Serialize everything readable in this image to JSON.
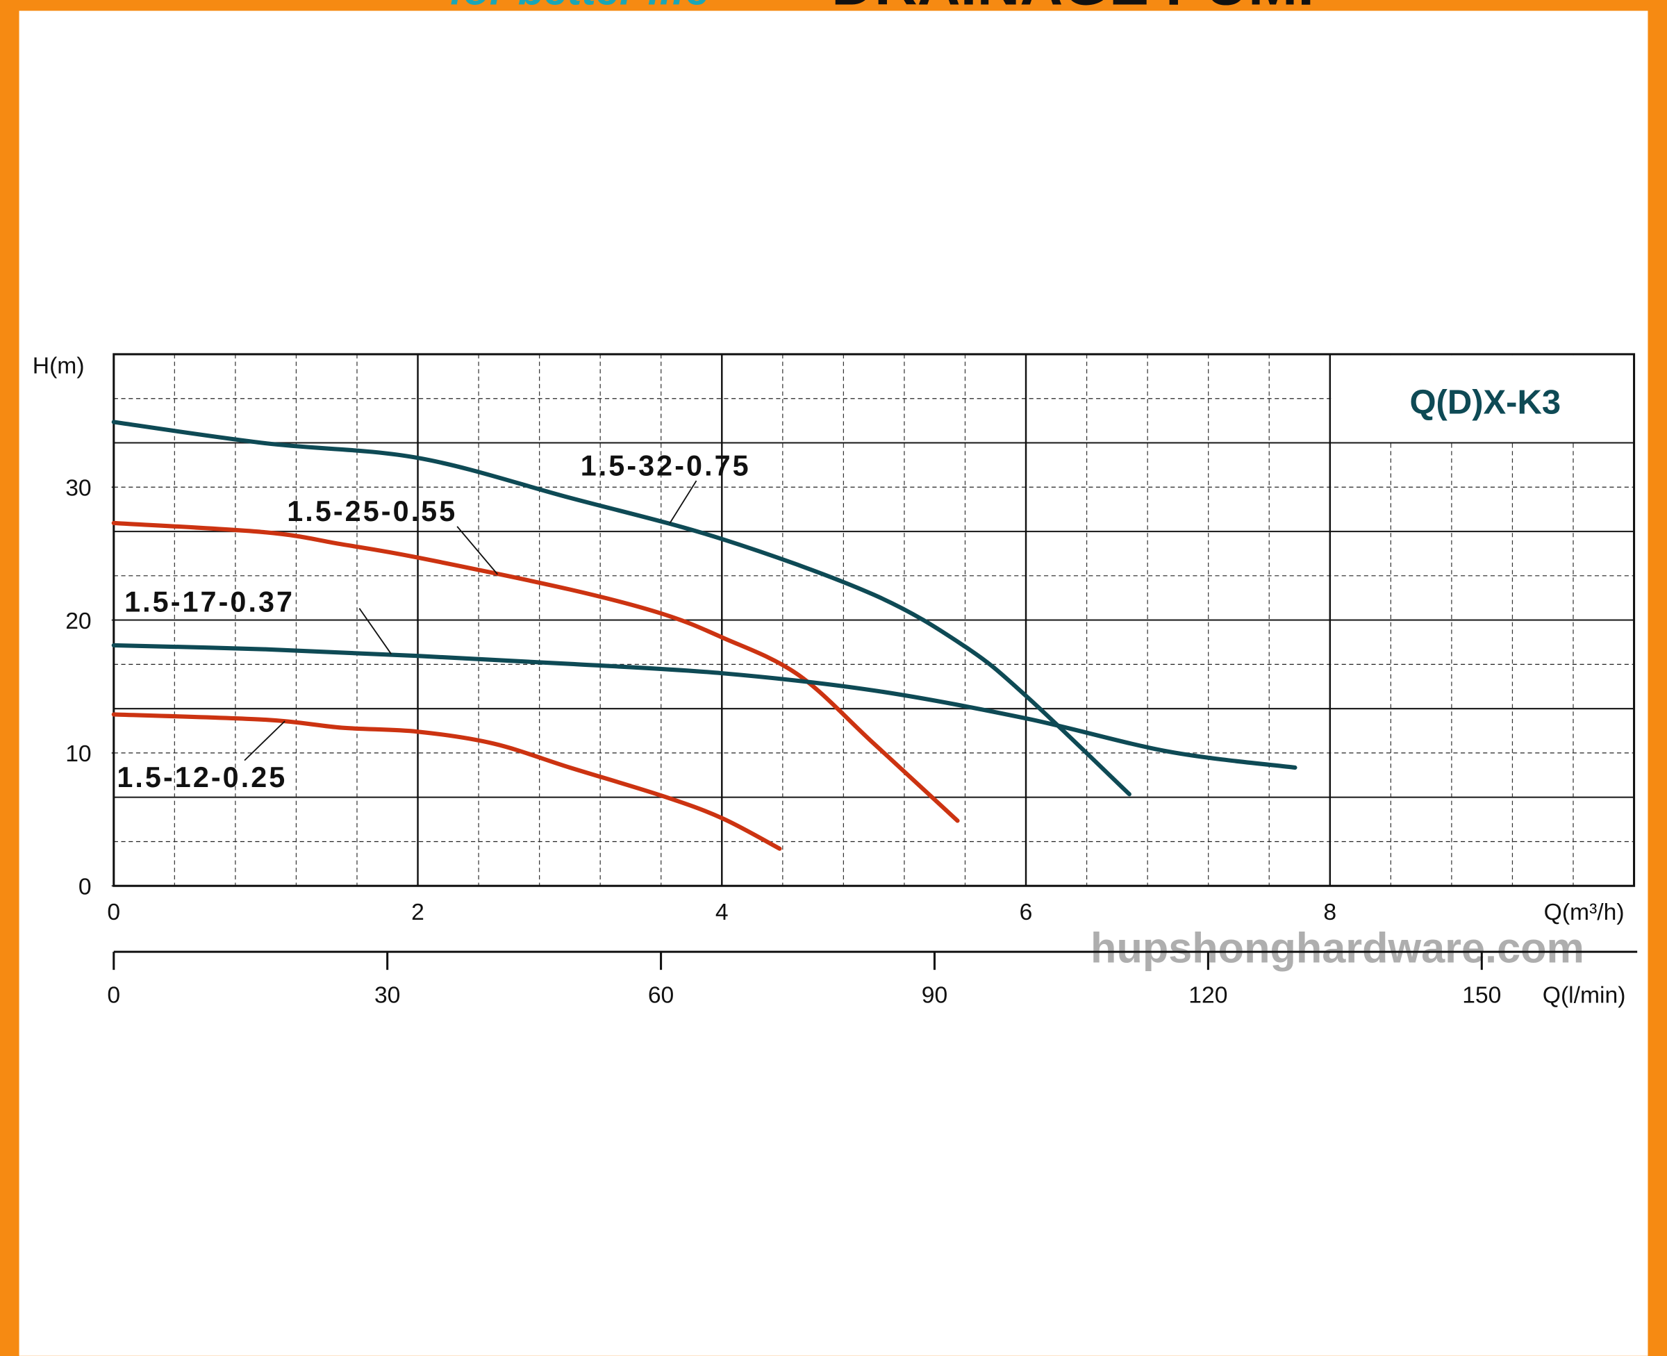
{
  "header": {
    "tagline": "for better life",
    "title": "DRAINAGE PUMP"
  },
  "watermark": "hupshonghardware.com",
  "chart_data": {
    "type": "line",
    "title": "Q(D)X-K3",
    "x_label": "Q(m³/h)",
    "x2_label": "Q(l/min)",
    "y_label": "H(m)",
    "xlim": [
      0,
      10
    ],
    "xticks": [
      0,
      2,
      4,
      6,
      8
    ],
    "x2lim": [
      0,
      166.7
    ],
    "x2ticks": [
      0,
      30,
      60,
      90,
      120,
      150
    ],
    "ylim": [
      0,
      40
    ],
    "yticks": [
      0,
      10,
      20,
      30
    ],
    "grid": true,
    "series": [
      {
        "name": "1.5-32-0.75",
        "color": "#0e4a55",
        "x": [
          0,
          1,
          2,
          3,
          4,
          5,
          5.6,
          6,
          6.68
        ],
        "values": [
          34.9,
          33.3,
          32.2,
          29.2,
          26.1,
          21.9,
          18,
          14.3,
          6.9
        ]
      },
      {
        "name": "1.5-25-0.55",
        "color": "#cc3311",
        "x": [
          0,
          1,
          1.5,
          2,
          3,
          3.6,
          4,
          4.5,
          5,
          5.55
        ],
        "values": [
          27.3,
          26.6,
          25.7,
          24.7,
          22.3,
          20.5,
          18.7,
          15.9,
          10.7,
          4.9
        ]
      },
      {
        "name": "1.5-17-0.37",
        "color": "#0e4a55",
        "x": [
          0,
          1,
          2,
          3,
          4,
          5,
          6,
          6.94,
          7.77
        ],
        "values": [
          18.1,
          17.8,
          17.3,
          16.7,
          16.0,
          14.7,
          12.6,
          10.1,
          8.9
        ]
      },
      {
        "name": "1.5-12-0.25",
        "color": "#cc3311",
        "x": [
          0,
          1,
          1.5,
          2,
          2.5,
          3,
          3.6,
          4,
          4.38
        ],
        "values": [
          12.9,
          12.5,
          11.9,
          11.6,
          10.7,
          8.9,
          6.8,
          5.1,
          2.8
        ]
      }
    ]
  }
}
